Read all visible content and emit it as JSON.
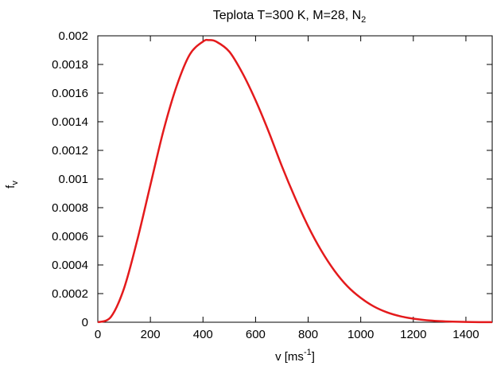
{
  "chart_data": {
    "type": "line",
    "title": "Teplota T=300 K, M=28, N",
    "title_subscript": "2",
    "xlabel": "v [ms",
    "xlabel_superscript": "-1",
    "xlabel_suffix": "]",
    "ylabel": "f",
    "ylabel_subscript": "v",
    "xlim": [
      0,
      1500
    ],
    "ylim": [
      0,
      0.002
    ],
    "xticks": [
      0,
      200,
      400,
      600,
      800,
      1000,
      1200,
      1400
    ],
    "xtick_labels": [
      "0",
      "200",
      "400",
      "600",
      "800",
      "1000",
      "1200",
      "1400"
    ],
    "yticks": [
      0,
      0.0002,
      0.0004,
      0.0006,
      0.0008,
      0.001,
      0.0012,
      0.0014,
      0.0016,
      0.0018,
      0.002
    ],
    "ytick_labels": [
      "0",
      "0.0002",
      "0.0004",
      "0.0006",
      "0.0008",
      "0.001",
      "0.0012",
      "0.0014",
      "0.0016",
      "0.0018",
      "0.002"
    ],
    "grid": false,
    "series": [
      {
        "color": "#e41a1c",
        "x": [
          0,
          50,
          100,
          150,
          200,
          250,
          300,
          350,
          400,
          422,
          450,
          500,
          550,
          600,
          650,
          700,
          750,
          800,
          850,
          900,
          950,
          1000,
          1050,
          1100,
          1150,
          1200,
          1250,
          1300,
          1350,
          1400,
          1450,
          1500
        ],
        "y": [
          0,
          3.77e-05,
          0.000238,
          0.000573,
          0.000958,
          0.00134,
          0.00165,
          0.00187,
          0.00196,
          0.00197,
          0.00196,
          0.00189,
          0.00174,
          0.00155,
          0.00133,
          0.00109,
          0.00087,
          0.00067,
          0.0005,
          0.00036,
          0.00025,
          0.00017,
          0.00011,
          6.9e-05,
          4.2e-05,
          2.5e-05,
          1.4e-05,
          7.7e-06,
          4e-06,
          2e-06,
          1e-06,
          5e-07
        ]
      }
    ]
  }
}
